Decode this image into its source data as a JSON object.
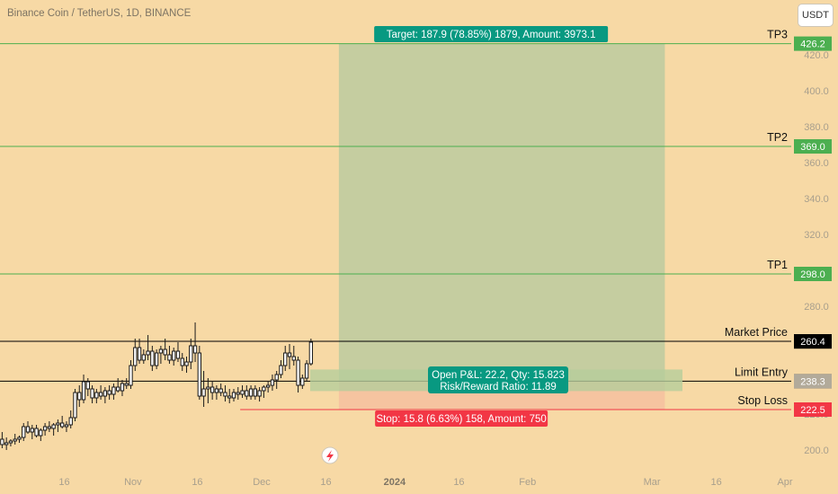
{
  "header": {
    "title": "Binance Coin / TetherUS, 1D, BINANCE",
    "currency_button": "USDT"
  },
  "colors": {
    "background": "#f7d9a5",
    "up": "#ffffff",
    "down": "#ffffff",
    "target_zone": "#c5cda0",
    "stop_zone": "#f6c4a0",
    "target_badge": "#089981",
    "stop_badge": "#f23645",
    "tp_line": "#4caf50",
    "axis_text": "#a89f8d"
  },
  "chart_data": {
    "type": "candlestick",
    "title": "Binance Coin / TetherUS, 1D, BINANCE",
    "ylim": [
      195,
      437
    ],
    "y_ticks": [
      200.0,
      220.0,
      240.0,
      260.0,
      280.0,
      300.0,
      320.0,
      340.0,
      360.0,
      380.0,
      400.0,
      420.0
    ],
    "x_ticks": [
      "16",
      "Nov",
      "16",
      "Dec",
      "16",
      "2024",
      "16",
      "Feb",
      "Mar",
      "16",
      "Apr"
    ],
    "x_tick_dates": [
      "2023-10-16",
      "2023-11-01",
      "2023-11-16",
      "2023-12-01",
      "2023-12-16",
      "2024-01-01",
      "2024-01-16",
      "2024-02-01",
      "2024-03-01",
      "2024-03-16",
      "2024-04-01"
    ],
    "x_range": [
      "2023-10-01",
      "2024-04-01"
    ],
    "candle_start": "2023-10-01",
    "candles": [
      [
        206,
        210,
        201,
        203
      ],
      [
        203,
        207,
        200,
        204
      ],
      [
        204,
        206,
        202,
        205
      ],
      [
        205,
        209,
        203,
        206
      ],
      [
        206,
        208,
        204,
        207
      ],
      [
        207,
        215,
        205,
        213
      ],
      [
        213,
        216,
        209,
        210
      ],
      [
        210,
        214,
        206,
        212
      ],
      [
        212,
        214,
        207,
        208
      ],
      [
        208,
        212,
        205,
        211
      ],
      [
        211,
        215,
        208,
        213
      ],
      [
        213,
        216,
        210,
        212
      ],
      [
        212,
        215,
        208,
        214
      ],
      [
        214,
        217,
        210,
        215
      ],
      [
        215,
        219,
        212,
        213
      ],
      [
        213,
        216,
        210,
        214
      ],
      [
        214,
        222,
        212,
        218
      ],
      [
        218,
        234,
        216,
        232
      ],
      [
        232,
        236,
        224,
        228
      ],
      [
        228,
        242,
        226,
        238
      ],
      [
        238,
        240,
        230,
        234
      ],
      [
        234,
        236,
        226,
        229
      ],
      [
        229,
        234,
        226,
        232
      ],
      [
        232,
        236,
        228,
        230
      ],
      [
        230,
        235,
        226,
        233
      ],
      [
        233,
        236,
        228,
        231
      ],
      [
        231,
        237,
        228,
        235
      ],
      [
        235,
        240,
        232,
        233
      ],
      [
        233,
        239,
        230,
        237
      ],
      [
        237,
        240,
        234,
        236
      ],
      [
        236,
        250,
        234,
        247
      ],
      [
        247,
        262,
        244,
        257
      ],
      [
        257,
        262,
        248,
        250
      ],
      [
        250,
        256,
        248,
        253
      ],
      [
        253,
        264,
        250,
        255
      ],
      [
        255,
        258,
        244,
        247
      ],
      [
        247,
        256,
        245,
        254
      ],
      [
        254,
        258,
        248,
        256
      ],
      [
        256,
        262,
        250,
        253
      ],
      [
        253,
        258,
        248,
        250
      ],
      [
        250,
        257,
        247,
        255
      ],
      [
        255,
        260,
        249,
        251
      ],
      [
        251,
        254,
        244,
        247
      ],
      [
        247,
        252,
        243,
        249
      ],
      [
        249,
        262,
        245,
        258
      ],
      [
        258,
        271,
        249,
        254
      ],
      [
        254,
        258,
        228,
        230
      ],
      [
        230,
        244,
        224,
        234
      ],
      [
        234,
        240,
        226,
        235
      ],
      [
        235,
        238,
        228,
        232
      ],
      [
        232,
        236,
        228,
        234
      ],
      [
        234,
        237,
        230,
        232
      ],
      [
        232,
        236,
        227,
        230
      ],
      [
        230,
        234,
        226,
        229
      ],
      [
        229,
        234,
        227,
        232
      ],
      [
        232,
        235,
        228,
        231
      ],
      [
        231,
        236,
        229,
        233
      ],
      [
        233,
        236,
        228,
        230
      ],
      [
        230,
        236,
        228,
        234
      ],
      [
        234,
        236,
        228,
        230
      ],
      [
        230,
        235,
        227,
        233
      ],
      [
        233,
        236,
        229,
        235
      ],
      [
        235,
        238,
        232,
        236
      ],
      [
        236,
        242,
        233,
        239
      ],
      [
        239,
        244,
        234,
        242
      ],
      [
        242,
        250,
        240,
        247
      ],
      [
        247,
        258,
        244,
        254
      ],
      [
        254,
        259,
        245,
        252
      ],
      [
        252,
        258,
        247,
        250
      ],
      [
        250,
        252,
        232,
        236
      ],
      [
        236,
        242,
        234,
        240
      ],
      [
        240,
        250,
        238,
        248
      ],
      [
        248,
        262,
        247,
        260
      ]
    ],
    "position": {
      "type": "long",
      "start": "2023-12-19",
      "end": "2024-03-04",
      "entry": 238.3,
      "target": 426.2,
      "stop": 222.5,
      "target_label": "Target: 187.9 (78.85%) 1879, Amount: 3973.1",
      "stop_label": "Stop: 15.8 (6.63%) 158, Amount: 750",
      "pnl_label": "Open P&L: 22.2, Qty: 15.823",
      "rr_label": "Risk/Reward Ratio: 11.89"
    },
    "lines": [
      {
        "name": "TP3",
        "value": 426.2,
        "badge": "426.2",
        "color": "#4caf50"
      },
      {
        "name": "TP2",
        "value": 369.0,
        "badge": "369.0",
        "color": "#4caf50"
      },
      {
        "name": "TP1",
        "value": 298.0,
        "badge": "298.0",
        "color": "#4caf50"
      },
      {
        "name": "Market Price",
        "value": 260.5,
        "badge": "260.5",
        "color": "#000000"
      },
      {
        "name": "Limit Entry",
        "value": 238.3,
        "badge": "238.3",
        "color": "#000000"
      },
      {
        "name": "Stop Loss",
        "value": 222.5,
        "badge": "222.5",
        "color": "#f23645"
      }
    ],
    "price_badges": [
      {
        "value": 260.4,
        "text": "260.4",
        "color": "#000000"
      },
      {
        "value": 238.3,
        "text": "238.3",
        "color": "#b2aa9a"
      },
      {
        "value": 222.5,
        "text": "222.5",
        "color": "#f23645"
      }
    ]
  }
}
